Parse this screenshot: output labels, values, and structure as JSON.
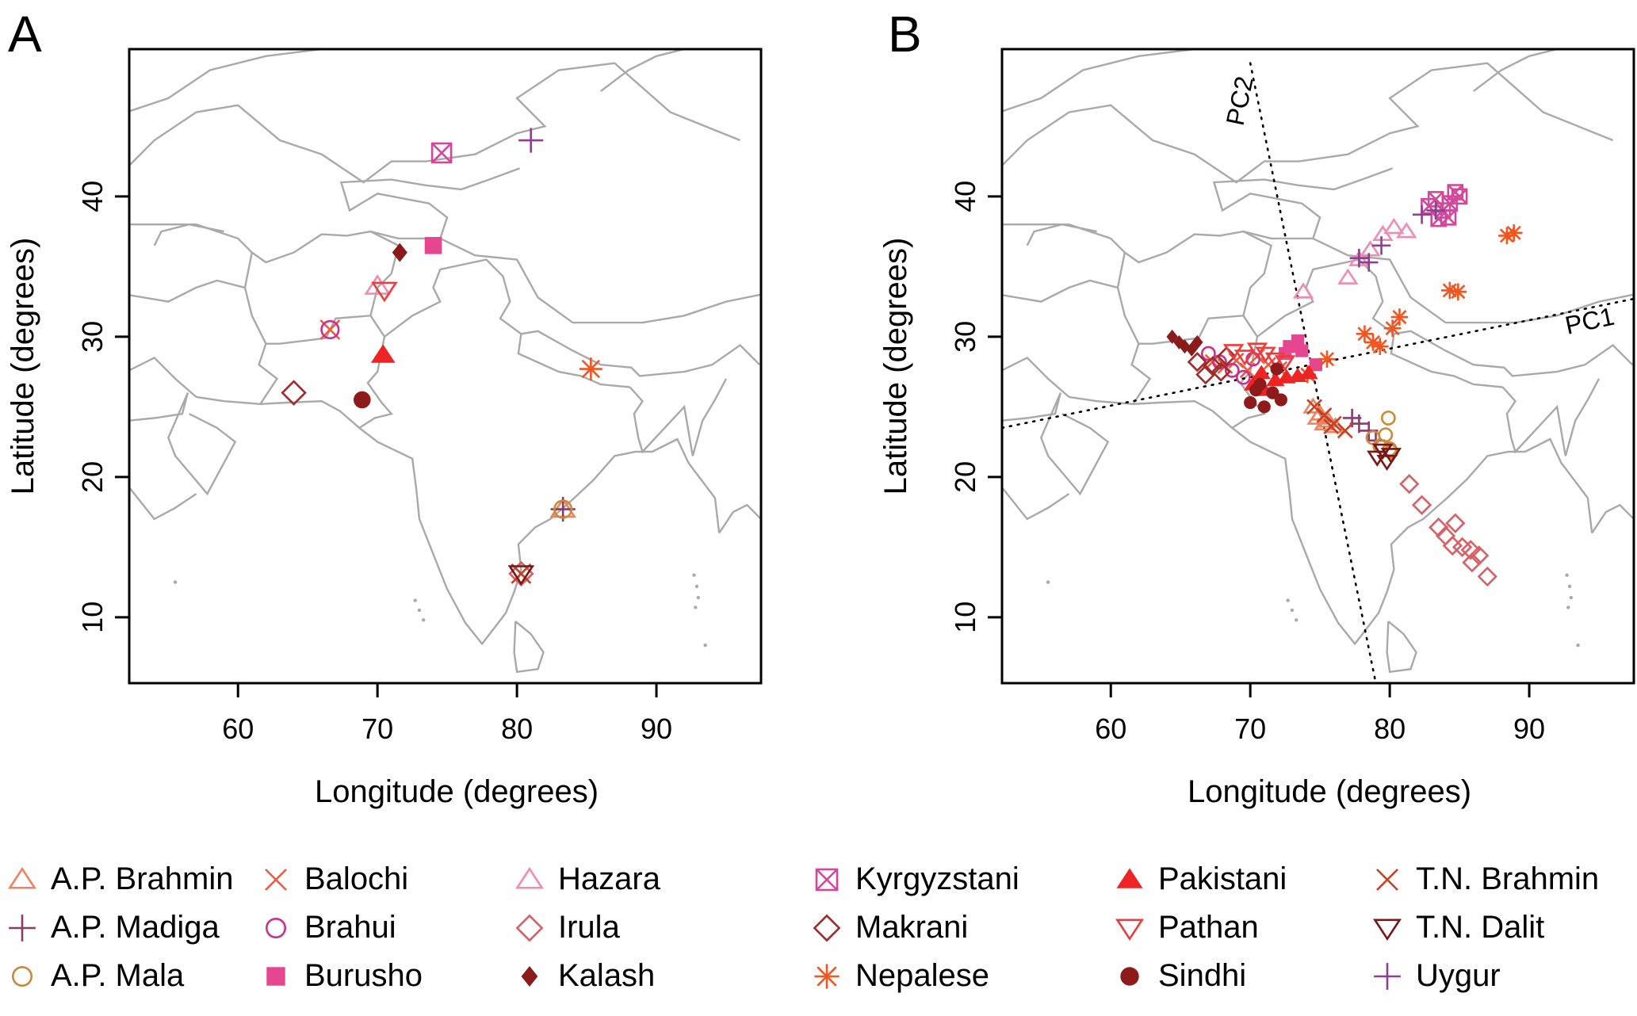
{
  "figure": {
    "panels": [
      {
        "letter": "A",
        "xlabel": "Longitude (degrees)",
        "ylabel": "Latitude (degrees)"
      },
      {
        "letter": "B",
        "xlabel": "Longitude (degrees)",
        "ylabel": "Latitude (degrees)",
        "axis_labels": [
          "PC1",
          "PC2"
        ]
      }
    ]
  },
  "chart_data": [
    {
      "type": "scatter",
      "panel": "A",
      "description_of_plot": "population centroid locations over South/Central Asia map",
      "xlabel": "Longitude (degrees)",
      "ylabel": "Latitude (degrees)",
      "xlim": [
        52.2,
        97.5
      ],
      "ylim": [
        5.3,
        50.5
      ],
      "xticks": [
        60,
        70,
        80,
        90
      ],
      "yticks": [
        10,
        20,
        30,
        40
      ],
      "grid": false,
      "background_map": true,
      "series": [
        {
          "name": "A.P. Brahmin",
          "points": [
            [
              83.3,
              17.7
            ]
          ]
        },
        {
          "name": "A.P. Madiga",
          "points": [
            [
              83.3,
              17.7
            ]
          ]
        },
        {
          "name": "A.P. Mala",
          "points": [
            [
              83.3,
              17.7
            ]
          ]
        },
        {
          "name": "Balochi",
          "points": [
            [
              66.6,
              30.5
            ]
          ]
        },
        {
          "name": "Brahui",
          "points": [
            [
              66.6,
              30.5
            ]
          ]
        },
        {
          "name": "Burusho",
          "points": [
            [
              74.0,
              36.5
            ]
          ]
        },
        {
          "name": "Hazara",
          "points": [
            [
              70.0,
              33.6
            ]
          ]
        },
        {
          "name": "Irula",
          "points": [
            [
              80.3,
              13.1
            ]
          ]
        },
        {
          "name": "Kalash",
          "points": [
            [
              71.6,
              36.0
            ]
          ]
        },
        {
          "name": "Kyrgyzstani",
          "points": [
            [
              74.6,
              43.1
            ]
          ]
        },
        {
          "name": "Makrani",
          "points": [
            [
              64.0,
              26.0
            ]
          ]
        },
        {
          "name": "Nepalese",
          "points": [
            [
              85.3,
              27.7
            ]
          ]
        },
        {
          "name": "Pakistani",
          "points": [
            [
              70.4,
              28.7
            ]
          ]
        },
        {
          "name": "Pathan",
          "points": [
            [
              70.5,
              33.3
            ]
          ]
        },
        {
          "name": "Sindhi",
          "points": [
            [
              68.9,
              25.5
            ]
          ]
        },
        {
          "name": "T.N. Brahmin",
          "points": [
            [
              80.3,
              13.1
            ]
          ]
        },
        {
          "name": "T.N. Dalit",
          "points": [
            [
              80.3,
              13.1
            ]
          ]
        },
        {
          "name": "Uygur",
          "points": [
            [
              81.0,
              44.0
            ]
          ]
        }
      ]
    },
    {
      "type": "scatter",
      "panel": "B",
      "description_of_plot": "individuals projected onto map via PC1/PC2",
      "xlabel": "Longitude (degrees)",
      "ylabel": "Latitude (degrees)",
      "xlim": [
        52.2,
        97.5
      ],
      "ylim": [
        5.3,
        50.5
      ],
      "xticks": [
        60,
        70,
        80,
        90
      ],
      "yticks": [
        10,
        20,
        30,
        40
      ],
      "grid": false,
      "background_map": true,
      "axis_lines": [
        {
          "name": "PC1",
          "from": [
            52.2,
            23.5
          ],
          "to": [
            97.5,
            32.7
          ]
        },
        {
          "name": "PC2",
          "from": [
            70.0,
            49.5
          ],
          "to": [
            79.0,
            5.3
          ]
        }
      ],
      "series": [
        {
          "name": "A.P. Brahmin",
          "points": [
            [
              74.5,
              25.0
            ],
            [
              75.0,
              24.5
            ],
            [
              75.6,
              24.0
            ],
            [
              76.1,
              23.6
            ],
            [
              74.8,
              24.2
            ],
            [
              75.3,
              23.8
            ]
          ]
        },
        {
          "name": "A.P. Madiga",
          "points": [
            [
              77.3,
              24.2
            ],
            [
              77.8,
              23.8
            ],
            [
              78.5,
              23.3
            ],
            [
              79.0,
              22.6
            ]
          ]
        },
        {
          "name": "A.P. Mala",
          "points": [
            [
              78.8,
              22.8
            ],
            [
              79.3,
              22.2
            ],
            [
              79.7,
              23.0
            ],
            [
              80.0,
              22.0
            ],
            [
              79.9,
              24.2
            ],
            [
              80.1,
              21.8
            ]
          ]
        },
        {
          "name": "Balochi",
          "points": [
            [
              67.3,
              28.2
            ],
            [
              68.2,
              27.9
            ],
            [
              69.0,
              28.3
            ],
            [
              69.8,
              27.6
            ],
            [
              70.5,
              28.6
            ],
            [
              71.3,
              28.0
            ],
            [
              72.1,
              27.7
            ]
          ]
        },
        {
          "name": "Brahui",
          "points": [
            [
              67.0,
              28.8
            ],
            [
              67.8,
              28.2
            ],
            [
              68.7,
              27.6
            ],
            [
              69.5,
              27.1
            ],
            [
              70.2,
              28.4
            ]
          ]
        },
        {
          "name": "Burusho",
          "points": [
            [
              72.8,
              29.3
            ],
            [
              73.4,
              29.7
            ],
            [
              72.5,
              28.8
            ],
            [
              73.7,
              29.0
            ],
            [
              74.7,
              28.0
            ]
          ]
        },
        {
          "name": "Hazara",
          "points": [
            [
              77.0,
              34.2
            ],
            [
              77.8,
              35.5
            ],
            [
              78.6,
              36.2
            ],
            [
              79.5,
              37.3
            ],
            [
              80.3,
              37.8
            ],
            [
              81.2,
              37.5
            ],
            [
              73.8,
              33.2
            ]
          ]
        },
        {
          "name": "Irula",
          "points": [
            [
              81.4,
              19.5
            ],
            [
              82.3,
              18.0
            ],
            [
              83.5,
              16.4
            ],
            [
              84.0,
              15.8
            ],
            [
              84.7,
              16.7
            ],
            [
              85.2,
              15.0
            ],
            [
              85.8,
              14.8
            ],
            [
              86.4,
              14.4
            ],
            [
              87.0,
              12.9
            ],
            [
              84.5,
              15.1
            ],
            [
              85.9,
              13.9
            ]
          ]
        },
        {
          "name": "Kalash",
          "points": [
            [
              64.4,
              30.0
            ],
            [
              64.9,
              29.6
            ],
            [
              65.3,
              29.3
            ],
            [
              65.8,
              29.1
            ],
            [
              66.2,
              29.6
            ]
          ]
        },
        {
          "name": "Kyrgyzstani",
          "points": [
            [
              82.8,
              39.3
            ],
            [
              83.3,
              39.8
            ],
            [
              83.8,
              39.0
            ],
            [
              84.3,
              39.5
            ],
            [
              84.7,
              40.3
            ],
            [
              84.2,
              38.5
            ],
            [
              83.5,
              38.4
            ],
            [
              85.0,
              40.0
            ]
          ]
        },
        {
          "name": "Makrani",
          "points": [
            [
              66.8,
              27.3
            ],
            [
              67.3,
              27.9
            ],
            [
              66.2,
              28.2
            ],
            [
              68.3,
              28.6
            ],
            [
              67.9,
              27.5
            ]
          ]
        },
        {
          "name": "Nepalese",
          "points": [
            [
              78.2,
              30.2
            ],
            [
              78.8,
              29.6
            ],
            [
              79.3,
              29.3
            ],
            [
              80.2,
              30.6
            ],
            [
              80.7,
              31.4
            ],
            [
              84.3,
              33.3
            ],
            [
              84.9,
              33.2
            ],
            [
              88.4,
              37.2
            ],
            [
              88.9,
              37.4
            ],
            [
              74.1,
              27.3
            ],
            [
              75.5,
              28.4
            ]
          ]
        },
        {
          "name": "Pakistani",
          "points": [
            [
              70.2,
              26.6
            ],
            [
              71.0,
              26.2
            ],
            [
              71.8,
              26.9
            ],
            [
              72.6,
              27.1
            ],
            [
              73.4,
              27.2
            ],
            [
              74.2,
              27.4
            ],
            [
              70.8,
              27.4
            ]
          ]
        },
        {
          "name": "Pathan",
          "points": [
            [
              68.8,
              29.0
            ],
            [
              69.6,
              28.6
            ],
            [
              70.5,
              29.1
            ],
            [
              71.1,
              28.8
            ],
            [
              71.8,
              28.4
            ],
            [
              72.5,
              28.2
            ]
          ]
        },
        {
          "name": "Sindhi",
          "points": [
            [
              70.0,
              25.3
            ],
            [
              70.4,
              26.2
            ],
            [
              71.0,
              25.0
            ],
            [
              71.6,
              26.0
            ],
            [
              72.2,
              25.5
            ],
            [
              70.7,
              26.6
            ],
            [
              71.9,
              27.7
            ]
          ]
        },
        {
          "name": "T.N. Brahmin",
          "points": [
            [
              74.6,
              25.0
            ],
            [
              75.3,
              24.4
            ],
            [
              76.0,
              23.8
            ],
            [
              76.8,
              23.3
            ],
            [
              75.8,
              23.6
            ]
          ]
        },
        {
          "name": "T.N. Dalit",
          "points": [
            [
              79.1,
              21.4
            ],
            [
              79.5,
              21.9
            ],
            [
              79.8,
              21.1
            ],
            [
              80.1,
              21.6
            ]
          ]
        },
        {
          "name": "Uygur",
          "points": [
            [
              77.8,
              35.6
            ],
            [
              78.5,
              35.3
            ],
            [
              79.4,
              36.5
            ],
            [
              82.3,
              38.7
            ],
            [
              83.3,
              39.0
            ]
          ]
        }
      ]
    }
  ],
  "legend": [
    {
      "name": "A.P. Brahmin",
      "symbol": "triangle-up",
      "color": "#f0835f"
    },
    {
      "name": "A.P. Madiga",
      "symbol": "plus",
      "color": "#8e3a6e"
    },
    {
      "name": "A.P. Mala",
      "symbol": "circle",
      "color": "#c98a3a"
    },
    {
      "name": "Balochi",
      "symbol": "x",
      "color": "#ee5a3c"
    },
    {
      "name": "Brahui",
      "symbol": "circle",
      "color": "#cc2f8f"
    },
    {
      "name": "Burusho",
      "symbol": "square-filled",
      "color": "#e6468f"
    },
    {
      "name": "Hazara",
      "symbol": "triangle-up",
      "color": "#f08bb2"
    },
    {
      "name": "Irula",
      "symbol": "diamond",
      "color": "#d95f66"
    },
    {
      "name": "Kalash",
      "symbol": "diamond-filled",
      "color": "#8b1a1a"
    },
    {
      "name": "Kyrgyzstani",
      "symbol": "boxed-x",
      "color": "#d3479a"
    },
    {
      "name": "Makrani",
      "symbol": "diamond",
      "color": "#a12a2a"
    },
    {
      "name": "Nepalese",
      "symbol": "asterisk",
      "color": "#f2551f"
    },
    {
      "name": "Pakistani",
      "symbol": "triangle-filled",
      "color": "#ee2323"
    },
    {
      "name": "Pathan",
      "symbol": "triangle-down",
      "color": "#ee3b3b"
    },
    {
      "name": "Sindhi",
      "symbol": "circle-filled",
      "color": "#8e1b1b"
    },
    {
      "name": "T.N. Brahmin",
      "symbol": "x",
      "color": "#c84022"
    },
    {
      "name": "T.N. Dalit",
      "symbol": "triangle-down",
      "color": "#7a1616"
    },
    {
      "name": "Uygur",
      "symbol": "plus",
      "color": "#8e3f8e"
    }
  ]
}
